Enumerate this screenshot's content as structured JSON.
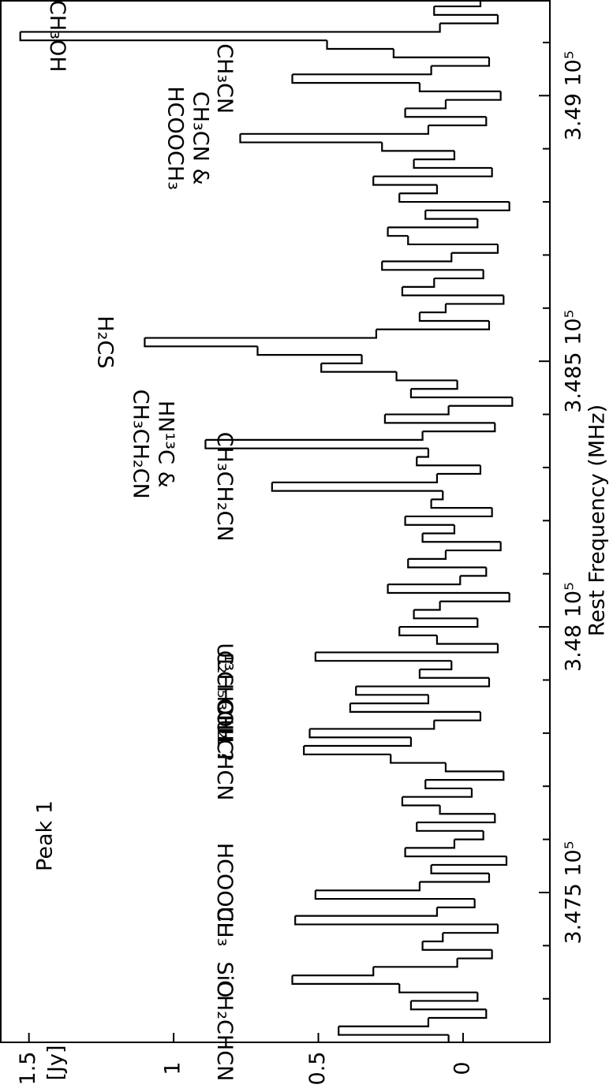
{
  "chart_data": {
    "type": "step",
    "title": "Peak 1",
    "x_label": "Rest Frequency (MHz)",
    "y_label": "[Jy]",
    "x": [
      347224,
      347240,
      347256,
      347272,
      347288,
      347304,
      347320,
      347336,
      347352,
      347368,
      347384,
      347400,
      347416,
      347432,
      347448,
      347464,
      347480,
      347496,
      347512,
      347528,
      347544,
      347560,
      347576,
      347592,
      347608,
      347624,
      347640,
      347656,
      347672,
      347688,
      347704,
      347720,
      347736,
      347752,
      347768,
      347784,
      347800,
      347816,
      347832,
      347848,
      347864,
      347880,
      347896,
      347912,
      347928,
      347944,
      347960,
      347976,
      347992,
      348008,
      348024,
      348040,
      348056,
      348072,
      348088,
      348104,
      348120,
      348136,
      348152,
      348168,
      348184,
      348200,
      348216,
      348232,
      348248,
      348264,
      348280,
      348296,
      348312,
      348328,
      348344,
      348360,
      348376,
      348392,
      348408,
      348424,
      348440,
      348456,
      348472,
      348488,
      348504,
      348520,
      348536,
      348552,
      348568,
      348584,
      348600,
      348616,
      348632,
      348648,
      348664,
      348680,
      348696,
      348712,
      348728,
      348744,
      348760,
      348776,
      348792,
      348808,
      348824,
      348840,
      348856,
      348872,
      348888,
      348904,
      348920,
      348936,
      348952,
      348968,
      348984,
      349000,
      349016,
      349032,
      349048,
      349064,
      349080,
      349096,
      349112,
      349128,
      349144,
      349160,
      349176
    ],
    "values": [
      0.05,
      0.43,
      0.12,
      -0.08,
      0.18,
      -0.05,
      0.22,
      0.59,
      0.31,
      0.02,
      -0.1,
      0.14,
      0.07,
      -0.12,
      0.58,
      0.09,
      -0.04,
      0.51,
      0.15,
      -0.09,
      0.11,
      -0.15,
      0.2,
      0.03,
      -0.07,
      0.16,
      -0.11,
      0.08,
      0.21,
      -0.03,
      0.13,
      -0.14,
      0.06,
      0.25,
      0.55,
      0.18,
      0.53,
      0.1,
      -0.06,
      0.39,
      0.12,
      0.37,
      -0.09,
      0.15,
      0.04,
      0.51,
      -0.12,
      0.09,
      0.22,
      -0.05,
      0.17,
      0.08,
      -0.16,
      0.26,
      0.01,
      -0.08,
      0.19,
      0.06,
      -0.13,
      0.14,
      0.03,
      0.2,
      -0.1,
      0.11,
      0.07,
      0.66,
      0.09,
      -0.06,
      0.16,
      0.12,
      0.89,
      0.14,
      -0.11,
      0.27,
      0.05,
      -0.17,
      0.18,
      0.02,
      0.23,
      0.49,
      0.35,
      0.71,
      1.1,
      0.3,
      -0.09,
      0.15,
      0.06,
      -0.14,
      0.21,
      0.1,
      -0.07,
      0.28,
      0.04,
      -0.12,
      0.19,
      0.26,
      -0.05,
      0.13,
      -0.16,
      0.22,
      0.09,
      0.31,
      -0.1,
      0.17,
      0.03,
      0.28,
      0.77,
      0.12,
      -0.08,
      0.2,
      0.06,
      -0.13,
      0.15,
      0.59,
      0.11,
      -0.09,
      0.24,
      0.47,
      1.53,
      0.08,
      -0.12,
      0.1,
      -0.06
    ],
    "color": "#000000",
    "xlim": [
      347218,
      349180
    ],
    "ylim": [
      -0.3,
      1.6
    ],
    "xticks": [
      {
        "value": 347500,
        "label": "3.475 10⁵"
      },
      {
        "value": 348000,
        "label": "3.48 10⁵"
      },
      {
        "value": 348500,
        "label": "3.485 10⁵"
      },
      {
        "value": 349000,
        "label": "3.49 10⁵"
      }
    ],
    "xminor_ticks": [
      347300,
      347400,
      347600,
      347700,
      347800,
      347900,
      348100,
      348200,
      348300,
      348400,
      348600,
      348700,
      348800,
      348900,
      349100
    ],
    "yticks": [
      0,
      0.5,
      1,
      1.5
    ],
    "annotations": [
      {
        "x": 347240,
        "lines": [
          "CH₂CHCN"
        ]
      },
      {
        "x": 347336,
        "lines": [
          "SiO"
        ]
      },
      {
        "x": 347448,
        "lines": [
          "UL"
        ]
      },
      {
        "x": 347496,
        "lines": [
          "HCOOCH₃"
        ]
      },
      {
        "x": 347768,
        "lines": [
          "CH₂CHCN"
        ]
      },
      {
        "x": 347800,
        "lines": [
          "UL"
        ]
      },
      {
        "x": 347848,
        "lines": [
          "¹³CH₃OH ?"
        ]
      },
      {
        "x": 347880,
        "lines": [
          "C₂H₅OH"
        ]
      },
      {
        "x": 347944,
        "lines": [
          "UL"
        ]
      },
      {
        "x": 348264,
        "lines": [
          "CH₃CH₂CN"
        ]
      },
      {
        "x": 348344,
        "lines": [
          "HN¹³C &",
          "CH₃CH₂CN"
        ]
      },
      {
        "x": 348536,
        "lines": [
          "H₂CS"
        ]
      },
      {
        "x": 348920,
        "lines": [
          "CH₃CN &",
          "HCOOCH₃"
        ]
      },
      {
        "x": 349032,
        "lines": [
          "CH₃CN"
        ]
      },
      {
        "x": 349112,
        "lines": [
          "CH₃OH"
        ]
      }
    ]
  }
}
